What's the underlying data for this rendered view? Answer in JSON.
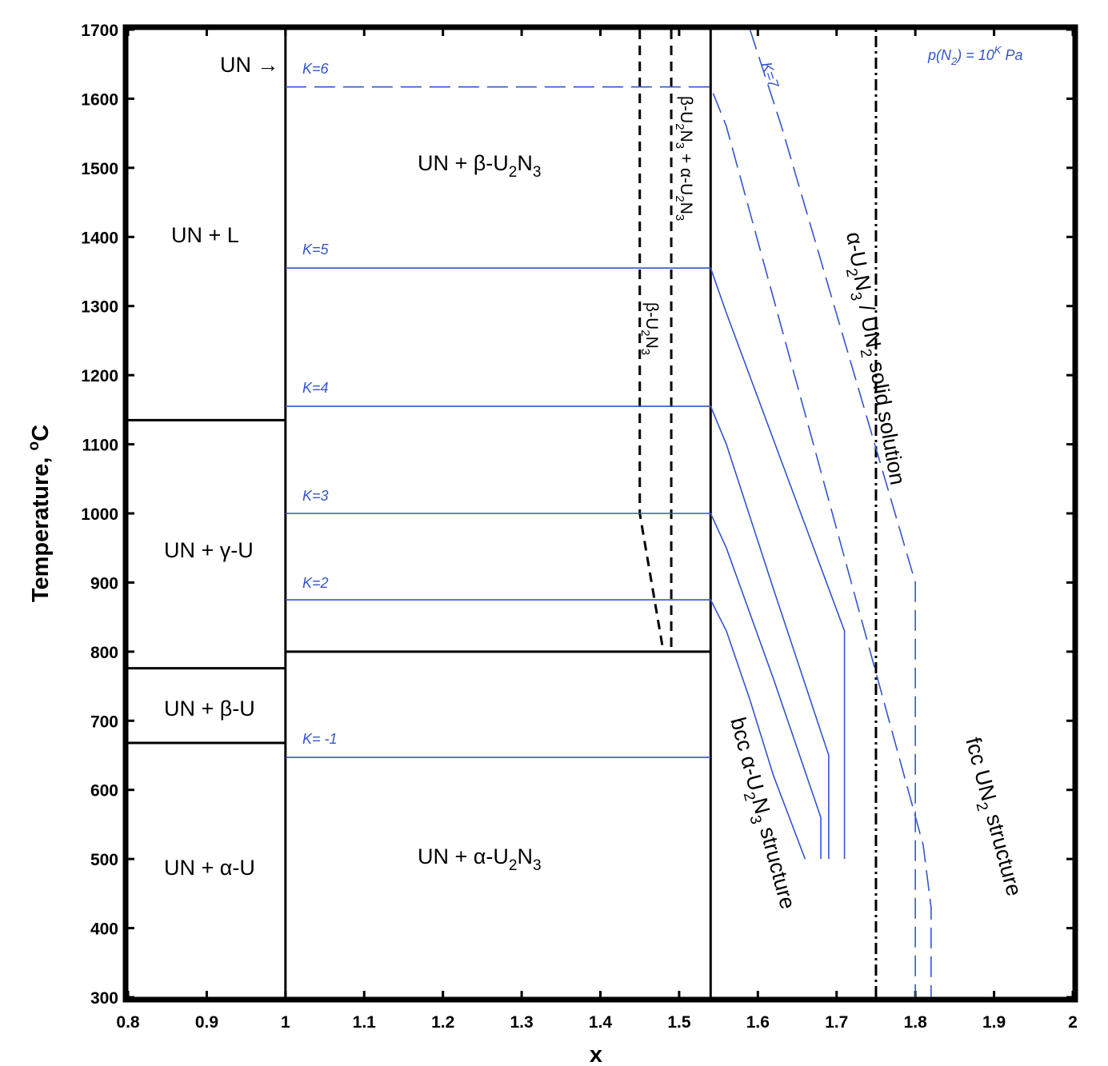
{
  "chart_data": {
    "type": "line",
    "title": "",
    "xlabel": "x",
    "ylabel": "Temperature, ",
    "ylabel_unit_sup": "o",
    "ylabel_unit": "C",
    "xlim": [
      0.8,
      2.0
    ],
    "ylim": [
      300,
      1700
    ],
    "x_ticks": [
      "0.8",
      "0.9",
      "1",
      "1.1",
      "1.2",
      "1.3",
      "1.4",
      "1.5",
      "1.6",
      "1.7",
      "1.8",
      "1.9",
      "2"
    ],
    "y_ticks": [
      "300",
      "400",
      "500",
      "600",
      "700",
      "800",
      "900",
      "1000",
      "1100",
      "1200",
      "1300",
      "1400",
      "1500",
      "1600",
      "1700"
    ],
    "grid": false,
    "legend_note": "p(N₂) = 10ᴷ Pa",
    "colors": {
      "phase_boundary": "#000000",
      "isobar": "#3355cc"
    },
    "phase_boundaries": [
      {
        "name": "UN vertical",
        "style": "solid",
        "points": [
          [
            1.0,
            300
          ],
          [
            1.0,
            1700
          ]
        ]
      },
      {
        "name": "U2N3 upper limit",
        "style": "solid",
        "points": [
          [
            1.54,
            300
          ],
          [
            1.54,
            1700
          ]
        ]
      },
      {
        "name": "UN + L / UN + gamma-U",
        "style": "solid",
        "points": [
          [
            0.8,
            1135
          ],
          [
            1.0,
            1135
          ]
        ]
      },
      {
        "name": "UN + gamma-U / UN + beta-U",
        "style": "solid",
        "points": [
          [
            0.8,
            776
          ],
          [
            1.0,
            776
          ]
        ]
      },
      {
        "name": "UN + beta-U / UN + alpha-U",
        "style": "solid",
        "points": [
          [
            0.8,
            668
          ],
          [
            1.0,
            668
          ]
        ]
      },
      {
        "name": "beta-U2N3 eutectoid",
        "style": "solid",
        "points": [
          [
            1.0,
            800
          ],
          [
            1.54,
            800
          ]
        ]
      },
      {
        "name": "beta-U2N3 left boundary",
        "style": "dashed",
        "points": [
          [
            1.45,
            1700
          ],
          [
            1.45,
            1000
          ],
          [
            1.48,
            800
          ]
        ]
      },
      {
        "name": "beta-U2N3 right boundary",
        "style": "dashed",
        "points": [
          [
            1.49,
            1700
          ],
          [
            1.49,
            800
          ]
        ]
      },
      {
        "name": "alpha-U2N3 / UN2 solid solution",
        "style": "dashdot",
        "points": [
          [
            1.75,
            300
          ],
          [
            1.75,
            1700
          ]
        ]
      }
    ],
    "series": [
      {
        "name": "K= -1",
        "style": "solid",
        "points": [
          [
            1.0,
            647
          ],
          [
            1.54,
            647
          ]
        ]
      },
      {
        "name": "K=2",
        "style": "solid",
        "points": [
          [
            1.0,
            875
          ],
          [
            1.54,
            875
          ],
          [
            1.56,
            830
          ],
          [
            1.59,
            730
          ],
          [
            1.62,
            620
          ],
          [
            1.66,
            500
          ]
        ]
      },
      {
        "name": "K=3",
        "style": "solid",
        "points": [
          [
            1.0,
            1000
          ],
          [
            1.54,
            1000
          ],
          [
            1.56,
            950
          ],
          [
            1.62,
            760
          ],
          [
            1.68,
            560
          ],
          [
            1.68,
            500
          ]
        ]
      },
      {
        "name": "K=4",
        "style": "solid",
        "points": [
          [
            1.0,
            1155
          ],
          [
            1.54,
            1155
          ],
          [
            1.56,
            1100
          ],
          [
            1.62,
            890
          ],
          [
            1.69,
            650
          ],
          [
            1.69,
            500
          ]
        ]
      },
      {
        "name": "K=5",
        "style": "solid",
        "points": [
          [
            1.0,
            1355
          ],
          [
            1.54,
            1355
          ],
          [
            1.56,
            1290
          ],
          [
            1.71,
            830
          ],
          [
            1.71,
            500
          ]
        ]
      },
      {
        "name": "K=6",
        "style": "dashed",
        "points": [
          [
            1.0,
            1617
          ],
          [
            1.54,
            1617
          ],
          [
            1.56,
            1560
          ],
          [
            1.81,
            520
          ],
          [
            1.82,
            430
          ],
          [
            1.82,
            300
          ]
        ]
      },
      {
        "name": "K=7",
        "style": "dashed",
        "points": [
          [
            1.59,
            1700
          ],
          [
            1.63,
            1560
          ],
          [
            1.8,
            900
          ],
          [
            1.8,
            500
          ],
          [
            1.8,
            300
          ]
        ]
      }
    ],
    "k_labels": [
      "K=6",
      "K=5",
      "K=4",
      "K=3",
      "K=2",
      "K= -1",
      "K=7"
    ],
    "region_labels": {
      "un_arrow": "UN →",
      "un_l": "UN + L",
      "un_gamma": "UN + γ-U",
      "un_beta": "UN + β-U",
      "un_alpha": "UN + α-U",
      "un_beta_u2n3_a": "UN + β-U",
      "un_beta_u2n3_sub": "2",
      "un_beta_u2n3_b": "N",
      "un_beta_u2n3_sub2": "3",
      "un_alpha_u2n3_a": "UN + α-U",
      "un_alpha_u2n3_sub": "2",
      "un_alpha_u2n3_b": "N",
      "un_alpha_u2n3_sub2": "3",
      "beta_u2n3_a": "β-U",
      "beta_u2n3_sub": "2",
      "beta_u2n3_b": "N",
      "beta_u2n3_sub2": "3",
      "beta_alpha_a": "β-U",
      "beta_alpha_sub": "2",
      "beta_alpha_b": "N",
      "beta_alpha_sub2": "3",
      "beta_alpha_c": " + α-U",
      "beta_alpha_sub3": "2",
      "beta_alpha_d": "N",
      "beta_alpha_sub4": "3",
      "ss_a": "α-U",
      "ss_sub": "2",
      "ss_b": "N",
      "ss_sub2": "3",
      "ss_c": " / UN",
      "ss_sub3": "2",
      "ss_d": " solid solution",
      "bcc_a": "bcc α-U",
      "bcc_sub": "2",
      "bcc_b": "N",
      "bcc_sub2": "3",
      "bcc_c": " structure",
      "fcc_a": "fcc UN",
      "fcc_sub": "2",
      "fcc_b": " structure"
    },
    "pressure_note": {
      "a": "p(N",
      "sub": "2",
      "b": ") = 10",
      "sup": "K",
      "c": " Pa"
    }
  }
}
